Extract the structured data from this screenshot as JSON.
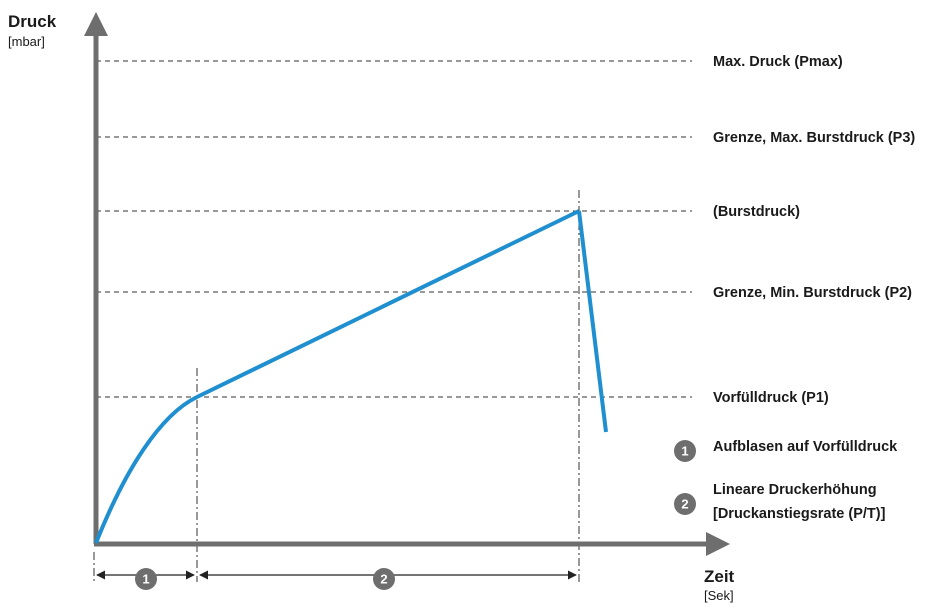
{
  "y_axis": {
    "title": "Druck",
    "unit": "[mbar]"
  },
  "x_axis": {
    "title": "Zeit",
    "unit": "[Sek]"
  },
  "levels": [
    {
      "id": "pmax",
      "label": "Max. Druck (Pmax)"
    },
    {
      "id": "p3",
      "label": "Grenze, Max. Burstdruck (P3)"
    },
    {
      "id": "burst",
      "label": "(Burstdruck)"
    },
    {
      "id": "p2",
      "label": "Grenze, Min. Burstdruck (P2)"
    },
    {
      "id": "p1",
      "label": "Vorfülldruck (P1)"
    }
  ],
  "legend": [
    {
      "number": "1",
      "lines": [
        "Aufblasen auf Vorfülldruck"
      ]
    },
    {
      "number": "2",
      "lines": [
        "Lineare Druckerhöhung",
        "[Druckanstiegsrate (P/T)]"
      ]
    }
  ],
  "phases": [
    {
      "number": "1"
    },
    {
      "number": "2"
    }
  ],
  "colors": {
    "axis": "#6e6e6e",
    "curve": "#1f8fcf",
    "badge": "#6e6e6e",
    "guide": "#333333",
    "text": "#1a1a1a"
  }
}
